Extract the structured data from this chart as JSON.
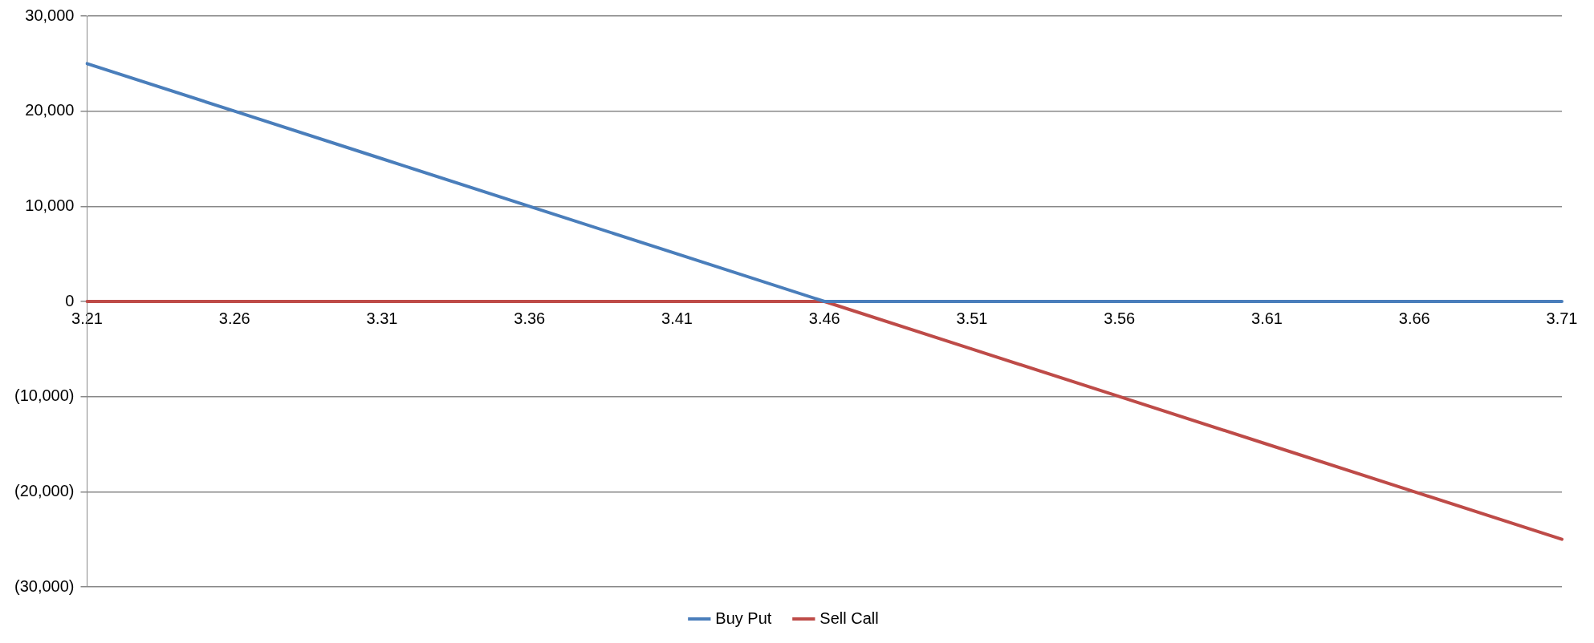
{
  "chart_data": {
    "type": "line",
    "categories": [
      "3.21",
      "3.26",
      "3.31",
      "3.36",
      "3.41",
      "3.46",
      "3.51",
      "3.56",
      "3.61",
      "3.66",
      "3.71"
    ],
    "series": [
      {
        "name": "Buy Put",
        "color": "#4a7ebb",
        "values": [
          25000,
          20000,
          15000,
          10000,
          5000,
          0,
          0,
          0,
          0,
          0,
          0
        ]
      },
      {
        "name": "Sell Call",
        "color": "#be4b48",
        "values": [
          0,
          0,
          0,
          0,
          0,
          0,
          -5000,
          -10000,
          -15000,
          -20000,
          -25000
        ]
      }
    ],
    "ylim": [
      -30000,
      30000
    ],
    "yticks": [
      {
        "value": -30000,
        "label": "(30,000)"
      },
      {
        "value": -20000,
        "label": "(20,000)"
      },
      {
        "value": -10000,
        "label": "(10,000)"
      },
      0,
      {
        "value": 10000,
        "label": "10,000"
      },
      {
        "value": 20000,
        "label": "20,000"
      },
      {
        "value": 30000,
        "label": "30,000"
      }
    ],
    "grid": "y",
    "legend": "bottom",
    "marker": "none",
    "line_style": "solid"
  }
}
